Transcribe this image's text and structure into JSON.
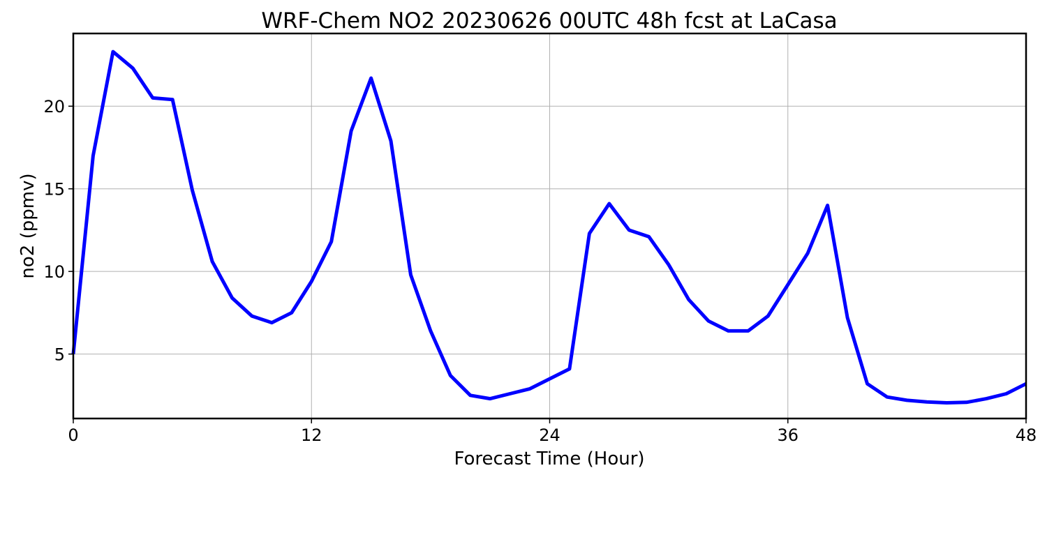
{
  "chart_data": {
    "type": "line",
    "title": "WRF-Chem NO2  20230626 00UTC 48h fcst at LaCasa",
    "xlabel": "Forecast Time (Hour)",
    "ylabel": "no2  (ppmv)",
    "xlim": [
      0,
      48
    ],
    "ylim": [
      1.1,
      24.4
    ],
    "xticks": [
      0,
      12,
      24,
      36,
      48
    ],
    "yticks": [
      5,
      10,
      15,
      20
    ],
    "grid": true,
    "legend": "none",
    "series": [
      {
        "color": "#0000ff",
        "x": [
          0,
          1,
          2,
          3,
          4,
          5,
          6,
          7,
          8,
          9,
          10,
          11,
          12,
          13,
          14,
          15,
          16,
          17,
          18,
          19,
          20,
          21,
          22,
          23,
          24,
          25,
          26,
          27,
          28,
          29,
          30,
          31,
          32,
          33,
          34,
          35,
          36,
          37,
          38,
          39,
          40,
          41,
          42,
          43,
          44,
          45,
          46,
          47,
          48
        ],
        "values": [
          5.0,
          17.0,
          23.3,
          22.3,
          20.5,
          20.4,
          14.9,
          10.6,
          8.4,
          7.3,
          6.9,
          7.5,
          9.4,
          11.8,
          18.5,
          21.7,
          17.9,
          9.8,
          6.4,
          3.7,
          2.5,
          2.3,
          2.6,
          2.9,
          3.5,
          4.1,
          12.3,
          14.1,
          12.5,
          12.1,
          10.4,
          8.3,
          7.0,
          6.4,
          6.4,
          7.3,
          9.2,
          11.1,
          14.0,
          7.2,
          3.2,
          2.4,
          2.2,
          2.1,
          2.05,
          2.08,
          2.3,
          2.6,
          3.2
        ]
      }
    ]
  }
}
